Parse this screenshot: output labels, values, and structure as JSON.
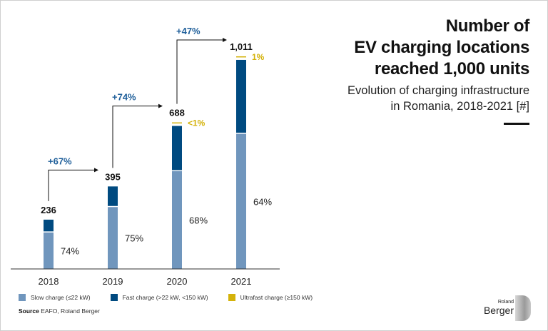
{
  "header": {
    "title_lines": [
      "Number of",
      "EV charging locations",
      "reached 1,000 units"
    ],
    "subtitle_lines": [
      "Evolution of charging infrastructure",
      "in Romania, 2018-2021 [#]"
    ]
  },
  "chart_data": {
    "type": "bar",
    "stacked": true,
    "categories": [
      "2018",
      "2019",
      "2020",
      "2021"
    ],
    "totals": [
      236,
      395,
      688,
      1011
    ],
    "total_labels": [
      "236",
      "395",
      "688",
      "1,011"
    ],
    "series": [
      {
        "name": "Slow charge (≤22 kW)",
        "share_pct": [
          74,
          75,
          68,
          64
        ],
        "color": "#7096bd"
      },
      {
        "name": "Fast charge (>22 kW, <150 kW)",
        "share_pct": [
          26,
          25,
          31.5,
          35
        ],
        "color": "#004a80"
      },
      {
        "name": "Ultrafast charge (≥150 kW)",
        "share_pct": [
          0,
          0,
          0.5,
          1
        ],
        "color": "#d4b20a"
      }
    ],
    "slow_labels": [
      "74%",
      "75%",
      "68%",
      "64%"
    ],
    "ultrafast_labels": [
      "",
      "",
      "<1%",
      "1%"
    ],
    "growth_labels": [
      "+67%",
      "+74%",
      "+47%"
    ],
    "ylim": [
      0,
      1011
    ],
    "grid": false,
    "legend": "bottom",
    "colors": {
      "growth": "#1f5f9a",
      "ultrafast_label": "#d4b20a"
    }
  },
  "footer": {
    "source_label": "Source",
    "source_text": " EAFO, Roland Berger",
    "logo_small": "Roland",
    "logo_big": "Berger"
  }
}
